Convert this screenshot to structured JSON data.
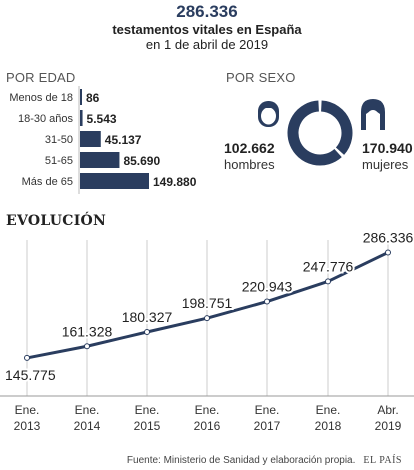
{
  "header": {
    "total": "286.336",
    "subtitle_line1": "testamentos vitales en España",
    "subtitle_line2": "en 1 de abril de 2019"
  },
  "age_section": {
    "title": "POR EDAD"
  },
  "sex_section": {
    "title": "POR SEXO"
  },
  "evolution_section": {
    "title": "EVOLUCIÓN"
  },
  "source": {
    "text": "Fuente: Ministerio de Sanidad y elaboración propia.",
    "brand": "EL PAÍS"
  },
  "colors": {
    "navy": "#2a3d5f",
    "grid": "#cccccc",
    "text": "#222222"
  },
  "icons": {
    "men": "man-head-icon",
    "women": "woman-head-icon"
  },
  "chart_data": [
    {
      "type": "bar",
      "orientation": "horizontal",
      "title": "POR EDAD",
      "categories": [
        "Menos de 18",
        "18-30 años",
        "31-50",
        "51-65",
        "Más de 65"
      ],
      "values": [
        86,
        5543,
        45137,
        85690,
        149880
      ],
      "value_labels": [
        "86",
        "5.543",
        "45.137",
        "85.690",
        "149.880"
      ],
      "xlim": [
        0,
        149880
      ]
    },
    {
      "type": "pie",
      "style": "donut",
      "title": "POR SEXO",
      "categories": [
        "hombres",
        "mujeres"
      ],
      "values": [
        102662,
        170940
      ],
      "value_labels": [
        "102.662",
        "170.940"
      ]
    },
    {
      "type": "line",
      "title": "EVOLUCIÓN",
      "x": [
        "Ene. 2013",
        "Ene. 2014",
        "Ene. 2015",
        "Ene. 2016",
        "Ene. 2017",
        "Ene. 2018",
        "Abr. 2019"
      ],
      "x_lines": [
        [
          "Ene.",
          "2013"
        ],
        [
          "Ene.",
          "2014"
        ],
        [
          "Ene.",
          "2015"
        ],
        [
          "Ene.",
          "2016"
        ],
        [
          "Ene.",
          "2017"
        ],
        [
          "Ene.",
          "2018"
        ],
        [
          "Abr.",
          "2019"
        ]
      ],
      "values": [
        145775,
        161328,
        180327,
        198751,
        220943,
        247776,
        286336
      ],
      "value_labels": [
        "145.775",
        "161.328",
        "180.327",
        "198.751",
        "220.943",
        "247.776",
        "286.336"
      ],
      "ylim": [
        95000,
        295000
      ],
      "grid": "vertical"
    }
  ]
}
